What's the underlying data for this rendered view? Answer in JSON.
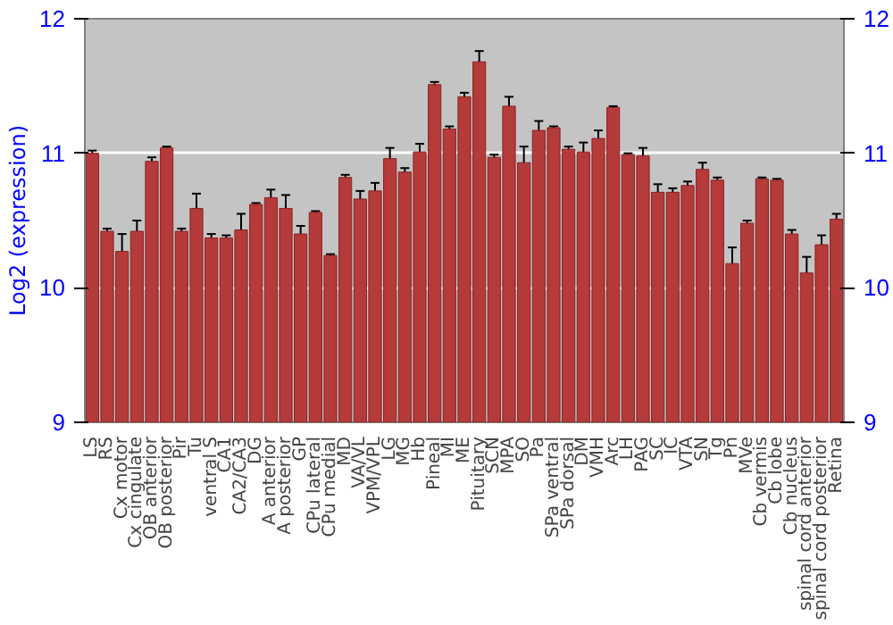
{
  "chart_data": {
    "type": "bar",
    "ylabel": "Log2 (expression)",
    "categories": [
      "LS",
      "RS",
      "Cx motor",
      "Cx cingulate",
      "OB anterior",
      "OB posterior",
      "Pir",
      "Tu",
      "ventral S",
      "CA1",
      "CA2/CA3",
      "DG",
      "A anterior",
      "A posterior",
      "GP",
      "CPu lateral",
      "CPu medial",
      "MD",
      "VA/VL",
      "VPM/VPL",
      "LG",
      "MG",
      "Hb",
      "Pineal",
      "MI",
      "ME",
      "Pituitary",
      "SCN",
      "MPA",
      "SO",
      "Pa",
      "SPa ventral",
      "SPa dorsal",
      "DM",
      "VMH",
      "Arc",
      "LH",
      "PAG",
      "SC",
      "IC",
      "VTA",
      "SN",
      "Tg",
      "Pn",
      "MVe",
      "Cb vermis",
      "Cb lobe",
      "Cb nucleus",
      "spinal cord anterior",
      "spinal cord posterior",
      "Retina"
    ],
    "values": [
      11.0,
      10.42,
      10.27,
      10.42,
      10.94,
      11.04,
      10.42,
      10.59,
      10.37,
      10.37,
      10.43,
      10.62,
      10.67,
      10.59,
      10.4,
      10.56,
      10.24,
      10.82,
      10.66,
      10.72,
      10.96,
      10.86,
      11.01,
      11.51,
      11.18,
      11.42,
      11.68,
      10.97,
      11.35,
      10.93,
      11.17,
      11.19,
      11.03,
      11.01,
      11.11,
      11.34,
      10.99,
      10.98,
      10.71,
      10.71,
      10.76,
      10.88,
      10.8,
      10.18,
      10.48,
      10.81,
      10.8,
      10.4,
      10.11,
      10.32,
      10.51
    ],
    "errors": [
      0.02,
      0.02,
      0.13,
      0.08,
      0.03,
      0.01,
      0.02,
      0.11,
      0.03,
      0.02,
      0.12,
      0.01,
      0.06,
      0.1,
      0.06,
      0.01,
      0.01,
      0.02,
      0.06,
      0.06,
      0.08,
      0.03,
      0.06,
      0.02,
      0.02,
      0.03,
      0.08,
      0.02,
      0.07,
      0.12,
      0.07,
      0.01,
      0.02,
      0.07,
      0.06,
      0.01,
      0.01,
      0.06,
      0.06,
      0.03,
      0.03,
      0.05,
      0.02,
      0.12,
      0.02,
      0.01,
      0.01,
      0.03,
      0.12,
      0.07,
      0.04
    ],
    "color": "#b53a3a",
    "ylim": [
      9,
      12
    ],
    "yticks": [
      9,
      10,
      11,
      12
    ],
    "y2lim": [
      9,
      12
    ],
    "y2ticks": [
      9,
      10,
      11,
      12
    ],
    "grid": "y"
  }
}
